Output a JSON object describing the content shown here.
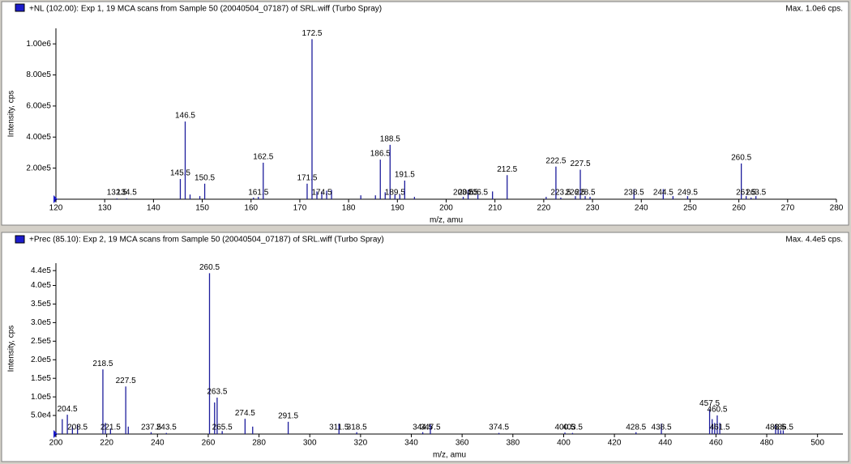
{
  "chart_data": [
    {
      "type": "bar",
      "title": "+NL (102.00): Exp 1, 19 MCA scans from Sample 50 (20040504_07187) of SRL.wiff (Turbo Spray)",
      "max_label": "Max. 1.0e6 cps.",
      "ylabel": "Intensity, cps",
      "xlabel": "m/z, amu",
      "color": "#1c1c9c",
      "xlim": [
        120,
        280
      ],
      "xticks": [
        120,
        130,
        140,
        150,
        160,
        170,
        180,
        190,
        200,
        210,
        220,
        230,
        240,
        250,
        260,
        270,
        280
      ],
      "ylim": [
        0,
        1100000
      ],
      "yticks": [
        {
          "value": 200000,
          "label": "2.00e5"
        },
        {
          "value": 400000,
          "label": "4.00e5"
        },
        {
          "value": 600000,
          "label": "6.00e5"
        },
        {
          "value": 800000,
          "label": "8.00e5"
        },
        {
          "value": 1000000,
          "label": "1.00e6"
        }
      ],
      "peaks": {
        "x": [
          132.5,
          134.5,
          145.5,
          146.5,
          150.5,
          161.5,
          162.5,
          171.5,
          172.5,
          174.5,
          186.5,
          188.5,
          189.5,
          191.5,
          203.5,
          204.5,
          206.5,
          212.5,
          222.5,
          223.5,
          226.5,
          227.5,
          228.5,
          238.5,
          244.5,
          249.5,
          260.5,
          261.5,
          263.5
        ],
        "values": [
          5000,
          5000,
          130000,
          500000,
          100000,
          15000,
          235000,
          100000,
          1030000,
          50000,
          255000,
          350000,
          30000,
          120000,
          15000,
          60000,
          30000,
          155000,
          210000,
          10000,
          20000,
          190000,
          20000,
          65000,
          65000,
          20000,
          230000,
          20000,
          20000
        ]
      },
      "other_peaks": {
        "x": [
          147.5,
          149.5,
          160.5,
          173.5,
          175.5,
          176.5,
          182.5,
          185.5,
          187.5,
          190.5,
          193.5,
          209.5,
          220.5,
          229.5,
          246.5,
          262.5
        ],
        "values": [
          30000,
          20000,
          10000,
          50000,
          55000,
          60000,
          25000,
          25000,
          45000,
          30000,
          15000,
          50000,
          15000,
          15000,
          20000,
          10000
        ]
      }
    },
    {
      "type": "bar",
      "title": "+Prec (85.10): Exp 2, 19 MCA scans from Sample 50 (20040504_07187) of SRL.wiff (Turbo Spray)",
      "max_label": "Max. 4.4e5 cps.",
      "ylabel": "Intensity, cps",
      "xlabel": "m/z, amu",
      "color": "#1c1c9c",
      "xlim": [
        200,
        510
      ],
      "xticks": [
        200,
        220,
        240,
        260,
        280,
        300,
        320,
        340,
        360,
        380,
        400,
        420,
        440,
        460,
        480,
        500
      ],
      "ylim": [
        0,
        460000
      ],
      "yticks": [
        {
          "value": 50000,
          "label": "5.0e4"
        },
        {
          "value": 100000,
          "label": "1.0e5"
        },
        {
          "value": 150000,
          "label": "1.5e5"
        },
        {
          "value": 200000,
          "label": "2.0e5"
        },
        {
          "value": 250000,
          "label": "2.5e5"
        },
        {
          "value": 300000,
          "label": "3.0e5"
        },
        {
          "value": 350000,
          "label": "3.5e5"
        },
        {
          "value": 400000,
          "label": "4.0e5"
        },
        {
          "value": 440000,
          "label": "4.4e5"
        }
      ],
      "peaks": {
        "x": [
          204.5,
          208.5,
          218.5,
          221.5,
          227.5,
          237.5,
          243.5,
          260.5,
          263.5,
          265.5,
          274.5,
          291.5,
          311.5,
          318.5,
          344.5,
          347.5,
          374.5,
          400.5,
          403.5,
          428.5,
          438.5,
          457.5,
          460.5,
          461.5,
          483.5,
          486.5
        ],
        "values": [
          52000,
          25000,
          174000,
          15000,
          128000,
          5000,
          3000,
          433000,
          98000,
          8000,
          41000,
          33000,
          28000,
          5000,
          5000,
          26000,
          3000,
          4000,
          3000,
          5000,
          28000,
          67000,
          50000,
          30000,
          26000,
          10000
        ]
      },
      "other_peaks": {
        "x": [
          202.5,
          206.5,
          219.5,
          228.5,
          262.5,
          277.5,
          458.5,
          459.5,
          484.5,
          485.5
        ],
        "values": [
          40000,
          20000,
          30000,
          20000,
          85000,
          20000,
          40000,
          30000,
          15000,
          10000
        ]
      }
    }
  ]
}
